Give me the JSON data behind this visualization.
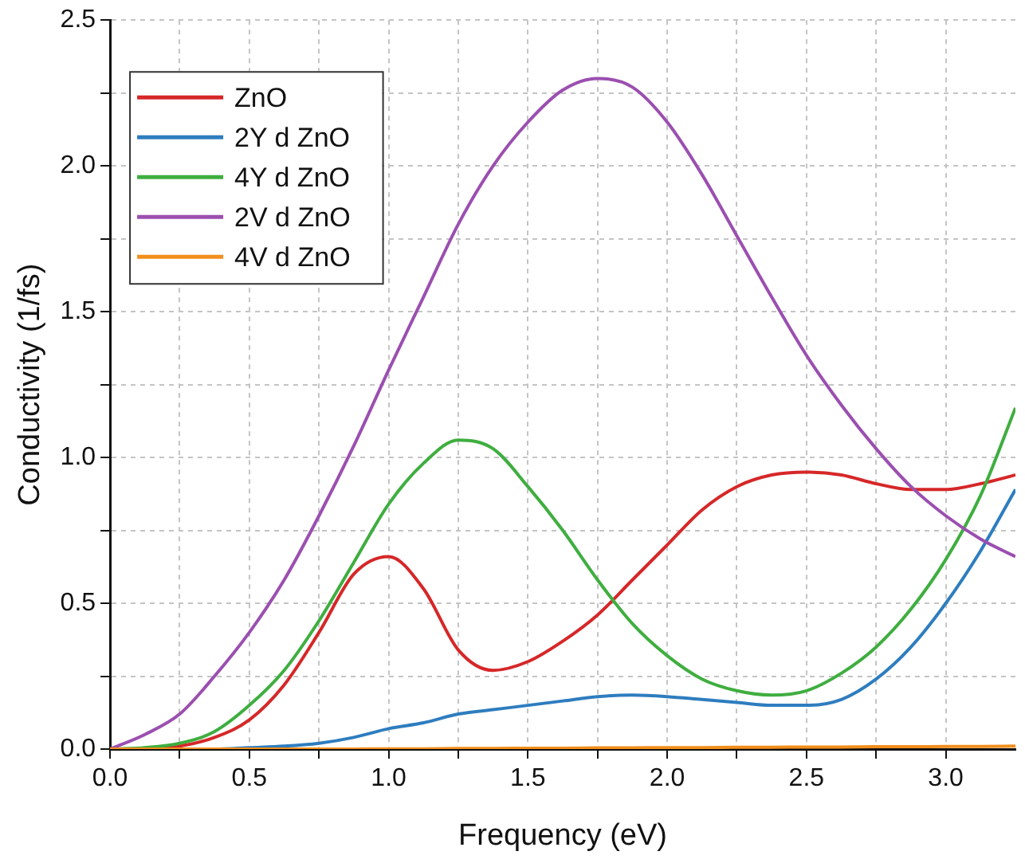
{
  "chart_data": {
    "type": "line",
    "xlabel": "Frequency (eV)",
    "ylabel": "Conductivity (1/fs)",
    "x": [
      0,
      0.125,
      0.25,
      0.375,
      0.5,
      0.625,
      0.75,
      0.875,
      1.0,
      1.125,
      1.25,
      1.375,
      1.5,
      1.625,
      1.75,
      1.875,
      2.0,
      2.125,
      2.25,
      2.375,
      2.5,
      2.625,
      2.75,
      2.875,
      3.0,
      3.125,
      3.25
    ],
    "series": [
      {
        "name": "ZnO",
        "color": "#d62728",
        "values": [
          0,
          0,
          0.01,
          0.04,
          0.1,
          0.22,
          0.4,
          0.6,
          0.66,
          0.55,
          0.34,
          0.27,
          0.3,
          0.37,
          0.46,
          0.58,
          0.7,
          0.82,
          0.9,
          0.94,
          0.95,
          0.94,
          0.91,
          0.89,
          0.89,
          0.91,
          0.94
        ]
      },
      {
        "name": "2Y d ZnO",
        "color": "#2e7dbf",
        "values": [
          null,
          null,
          0,
          0,
          0.005,
          0.01,
          0.02,
          0.04,
          0.07,
          0.09,
          0.12,
          0.135,
          0.15,
          0.165,
          0.18,
          0.185,
          0.18,
          0.17,
          0.16,
          0.15,
          0.15,
          0.17,
          0.24,
          0.35,
          0.5,
          0.68,
          0.89
        ]
      },
      {
        "name": "4Y d ZnO",
        "color": "#3fae3f",
        "values": [
          0,
          0.005,
          0.02,
          0.06,
          0.15,
          0.27,
          0.44,
          0.64,
          0.84,
          0.98,
          1.06,
          1.03,
          0.9,
          0.75,
          0.58,
          0.43,
          0.32,
          0.24,
          0.2,
          0.185,
          0.2,
          0.26,
          0.35,
          0.48,
          0.65,
          0.87,
          1.17
        ]
      },
      {
        "name": "2V d ZnO",
        "color": "#9b4fb0",
        "values": [
          0,
          0.05,
          0.12,
          0.25,
          0.4,
          0.58,
          0.8,
          1.04,
          1.3,
          1.55,
          1.8,
          2.0,
          2.15,
          2.26,
          2.3,
          2.27,
          2.15,
          1.97,
          1.76,
          1.55,
          1.35,
          1.18,
          1.03,
          0.9,
          0.8,
          0.72,
          0.66
        ]
      },
      {
        "name": "4V d ZnO",
        "color": "#f28e1c",
        "values": [
          0,
          0,
          0,
          0,
          0,
          0,
          0,
          0,
          0.001,
          0.001,
          0.002,
          0.002,
          0.003,
          0.003,
          0.004,
          0.004,
          0.005,
          0.005,
          0.006,
          0.006,
          0.007,
          0.007,
          0.008,
          0.008,
          0.009,
          0.009,
          0.01
        ]
      }
    ],
    "xlim": [
      0,
      3.25
    ],
    "xticks": [
      {
        "value": 0,
        "label": "0.0"
      },
      {
        "value": 0.25,
        "label": null
      },
      0.5,
      {
        "value": 0.75,
        "label": null
      },
      {
        "value": 1,
        "label": "1.0"
      },
      {
        "value": 1.25,
        "label": null
      },
      1.5,
      {
        "value": 1.75,
        "label": null
      },
      {
        "value": 2,
        "label": "2.0"
      },
      {
        "value": 2.25,
        "label": null
      },
      2.5,
      {
        "value": 2.75,
        "label": null
      },
      {
        "value": 3,
        "label": "3.0"
      }
    ],
    "ylim": [
      0,
      2.5
    ],
    "yticks": [
      {
        "value": 0,
        "label": "0.0"
      },
      {
        "value": 0.25,
        "label": null
      },
      0.5,
      {
        "value": 0.75,
        "label": null
      },
      {
        "value": 1,
        "label": "1.0"
      },
      {
        "value": 1.25,
        "label": null
      },
      1.5,
      {
        "value": 1.75,
        "label": null
      },
      {
        "value": 2,
        "label": "2.0"
      },
      {
        "value": 2.25,
        "label": null
      },
      2.5
    ],
    "grid": true,
    "legend": "top left",
    "line_style": "solid",
    "marker": "none"
  }
}
